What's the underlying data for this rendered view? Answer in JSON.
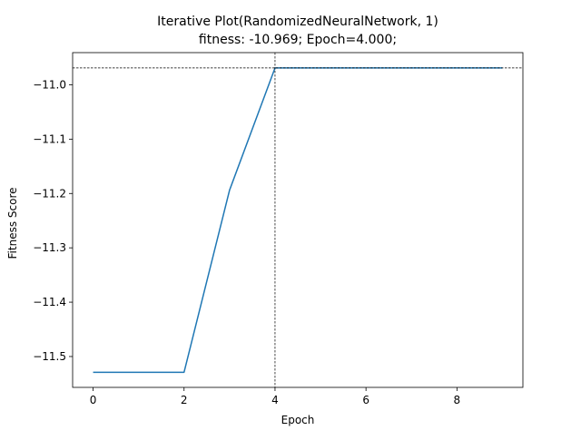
{
  "chart_data": {
    "type": "line",
    "title": "Iterative Plot(RandomizedNeuralNetwork, 1)",
    "subtitle": "fitness: -10.969; Epoch=4.000;",
    "xlabel": "Epoch",
    "ylabel": "Fitness Score",
    "xlim": [
      -0.45,
      9.45
    ],
    "ylim": [
      -11.5568,
      -10.9408
    ],
    "xticks": [
      0,
      2,
      4,
      6,
      8
    ],
    "xtick_labels": [
      "0",
      "2",
      "4",
      "6",
      "8"
    ],
    "yticks": [
      -11.5,
      -11.4,
      -11.3,
      -11.2,
      -11.1,
      -11.0
    ],
    "ytick_labels": [
      "−11.5",
      "−11.4",
      "−11.3",
      "−11.2",
      "−11.1",
      "−11.0"
    ],
    "grid": false,
    "series": [
      {
        "x": [
          0,
          1,
          2,
          3,
          4,
          5,
          6,
          7,
          8,
          9
        ],
        "y": [
          -11.529,
          -11.529,
          -11.529,
          -11.194,
          -10.969,
          -10.969,
          -10.969,
          -10.969,
          -10.969,
          -10.969
        ],
        "color": "#1f77b4"
      }
    ],
    "reference_lines": {
      "x": 4,
      "y": -10.969,
      "color": "#000000",
      "style": "dashed"
    }
  }
}
